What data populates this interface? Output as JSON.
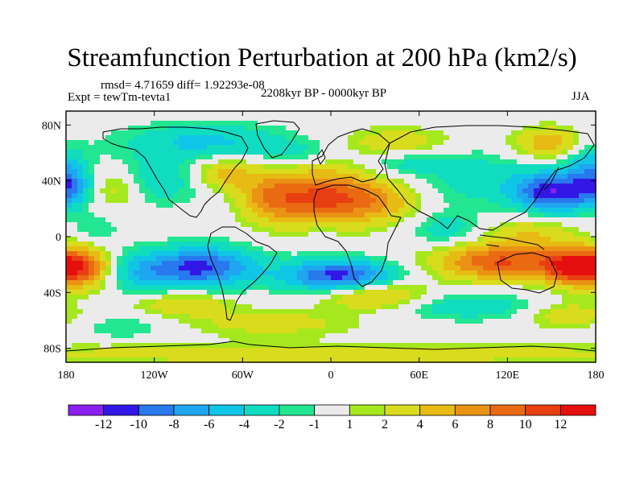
{
  "chart_data": {
    "type": "heatmap",
    "title": "Streamfunction Perturbation at 200 hPa (km2/s)",
    "stats_text": "rmsd= 4.71659 diff= 1.92293e-08",
    "experiment_text": "Expt = tewTm-tevta1",
    "period_text": "2208kyr BP - 0000kyr BP",
    "season_text": "JJA",
    "x_axis": {
      "range": [
        -180,
        180
      ],
      "ticks": [
        {
          "value": -180,
          "label": "180"
        },
        {
          "value": -120,
          "label": "120W"
        },
        {
          "value": -60,
          "label": "60W"
        },
        {
          "value": 0,
          "label": "0"
        },
        {
          "value": 60,
          "label": "60E"
        },
        {
          "value": 120,
          "label": "120E"
        },
        {
          "value": 180,
          "label": "180"
        }
      ]
    },
    "y_axis": {
      "range": [
        -90,
        90
      ],
      "ticks": [
        {
          "value": 80,
          "label": "80N"
        },
        {
          "value": 40,
          "label": "40N"
        },
        {
          "value": 0,
          "label": "0"
        },
        {
          "value": -40,
          "label": "40S"
        },
        {
          "value": -80,
          "label": "80S"
        }
      ]
    },
    "contour_levels": [
      -12,
      -10,
      -8,
      -6,
      -4,
      -2,
      -1,
      1,
      2,
      4,
      6,
      8,
      10,
      12
    ],
    "colorbar_labels": [
      "-12",
      "-10",
      "-8",
      "-6",
      "-4",
      "-2",
      "-1",
      "1",
      "2",
      "4",
      "6",
      "8",
      "10",
      "12"
    ],
    "colors": [
      "#8a1ff0",
      "#3317e6",
      "#2878ee",
      "#1fa6f0",
      "#10c6e6",
      "#10dcc0",
      "#22e691",
      "#ebebeb",
      "#a6e81e",
      "#d9dc1c",
      "#e8bb14",
      "#ea9214",
      "#ea6a12",
      "#e83f12",
      "#e60f0f"
    ],
    "field_centers": [
      {
        "lon": -5,
        "lat": 28,
        "amp": 10.5,
        "slon": 26,
        "slat": 14
      },
      {
        "lon": -42,
        "lat": 28,
        "amp": 5,
        "slon": 14,
        "slat": 12
      },
      {
        "lon": 35,
        "lat": 25,
        "amp": 4,
        "slon": 18,
        "slat": 10
      },
      {
        "lon": 150,
        "lat": 32,
        "amp": -11.5,
        "slon": 18,
        "slat": 10
      },
      {
        "lon": 100,
        "lat": 42,
        "amp": -3,
        "slon": 25,
        "slat": 14
      },
      {
        "lon": 175,
        "lat": 50,
        "amp": -5,
        "slon": 12,
        "slat": 14
      },
      {
        "lon": -178,
        "lat": 35,
        "amp": -5.5,
        "slon": 10,
        "slat": 10
      },
      {
        "lon": -120,
        "lat": 40,
        "amp": -3.5,
        "slon": 25,
        "slat": 12
      },
      {
        "lon": -145,
        "lat": 35,
        "amp": 4,
        "slon": 12,
        "slat": 10
      },
      {
        "lon": -72,
        "lat": 45,
        "amp": 5,
        "slon": 15,
        "slat": 8
      },
      {
        "lon": -85,
        "lat": 68,
        "amp": -4.5,
        "slon": 40,
        "slat": 9
      },
      {
        "lon": 150,
        "lat": 67,
        "amp": 5.5,
        "slon": 18,
        "slat": 8
      },
      {
        "lon": 45,
        "lat": 68,
        "amp": 3.5,
        "slon": 25,
        "slat": 7
      },
      {
        "lon": 50,
        "lat": 52,
        "amp": -2.5,
        "slon": 20,
        "slat": 7
      },
      {
        "lon": -20,
        "lat": 60,
        "amp": -2,
        "slon": 18,
        "slat": 6
      },
      {
        "lon": -88,
        "lat": -22,
        "amp": -10.5,
        "slon": 26,
        "slat": 10
      },
      {
        "lon": 5,
        "lat": -28,
        "amp": -11,
        "slon": 26,
        "slat": 8
      },
      {
        "lon": -130,
        "lat": -26,
        "amp": -4,
        "slon": 18,
        "slat": 10
      },
      {
        "lon": -170,
        "lat": -22,
        "amp": 10,
        "slon": 14,
        "slat": 10
      },
      {
        "lon": 115,
        "lat": -18,
        "amp": 10,
        "slon": 30,
        "slat": 9
      },
      {
        "lon": 165,
        "lat": -22,
        "amp": 11,
        "slon": 15,
        "slat": 9
      },
      {
        "lon": 135,
        "lat": 2,
        "amp": 3.5,
        "slon": 22,
        "slat": 9
      },
      {
        "lon": 30,
        "lat": -42,
        "amp": 5.5,
        "slon": 25,
        "slat": 7
      },
      {
        "lon": -100,
        "lat": -48,
        "amp": 4,
        "slon": 22,
        "slat": 6
      },
      {
        "lon": 95,
        "lat": -50,
        "amp": -3.5,
        "slon": 35,
        "slat": 7
      },
      {
        "lon": 160,
        "lat": -56,
        "amp": 3.5,
        "slon": 20,
        "slat": 7
      },
      {
        "lon": -40,
        "lat": -62,
        "amp": 3,
        "slon": 40,
        "slat": 7
      },
      {
        "lon": -140,
        "lat": -65,
        "amp": -2,
        "slon": 20,
        "slat": 6
      },
      {
        "lon": 0,
        "lat": -84,
        "amp": 3.5,
        "slon": 180,
        "slat": 5
      },
      {
        "lon": -5,
        "lat": 4,
        "amp": -1.5,
        "slon": 8,
        "slat": 5
      },
      {
        "lon": 80,
        "lat": 5,
        "amp": -3,
        "slon": 18,
        "slat": 9
      },
      {
        "lon": -160,
        "lat": 5,
        "amp": -2,
        "slon": 12,
        "slat": 8
      }
    ]
  }
}
